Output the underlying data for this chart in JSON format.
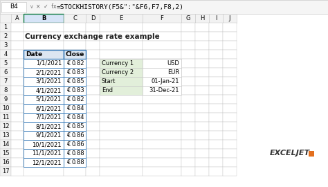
{
  "title": "Currency exchange rate example",
  "formula_bar_cell": "B4",
  "formula_bar_formula": "=STOCKHISTORY(F5&\":\"&F6,F7,F8,2)",
  "table_header": [
    "Date",
    "Close"
  ],
  "dates": [
    "1/1/2021",
    "2/1/2021",
    "3/1/2021",
    "4/1/2021",
    "5/1/2021",
    "6/1/2021",
    "7/1/2021",
    "8/1/2021",
    "9/1/2021",
    "10/1/2021",
    "11/1/2021",
    "12/1/2021"
  ],
  "euro_symbol": "€",
  "values": [
    0.82,
    0.83,
    0.85,
    0.83,
    0.82,
    0.84,
    0.84,
    0.85,
    0.86,
    0.86,
    0.88,
    0.88
  ],
  "info_labels": [
    "Currency 1",
    "Currency 2",
    "Start",
    "End"
  ],
  "info_values": [
    "USD",
    "EUR",
    "01-Jan-21",
    "31-Dec-21"
  ],
  "bg_color": "#ffffff",
  "grid_line_color": "#c8c8c8",
  "header_bg": "#dce6f1",
  "selected_col_bg": "#d6e4f7",
  "formula_bar_bg": "#f5f5f5",
  "col_header_bg": "#f2f2f2",
  "row_header_bg": "#f2f2f2",
  "info_label_bg": "#e2efda",
  "info_value_bg": "#ffffff",
  "selected_cell_border": "#107c41",
  "table_border": "#2e75b6",
  "text_color": "#000000",
  "title_color": "#1f1f1f",
  "logo_text": "EXCELJET",
  "logo_color": "#333333",
  "logo_accent": "#e36f1e"
}
